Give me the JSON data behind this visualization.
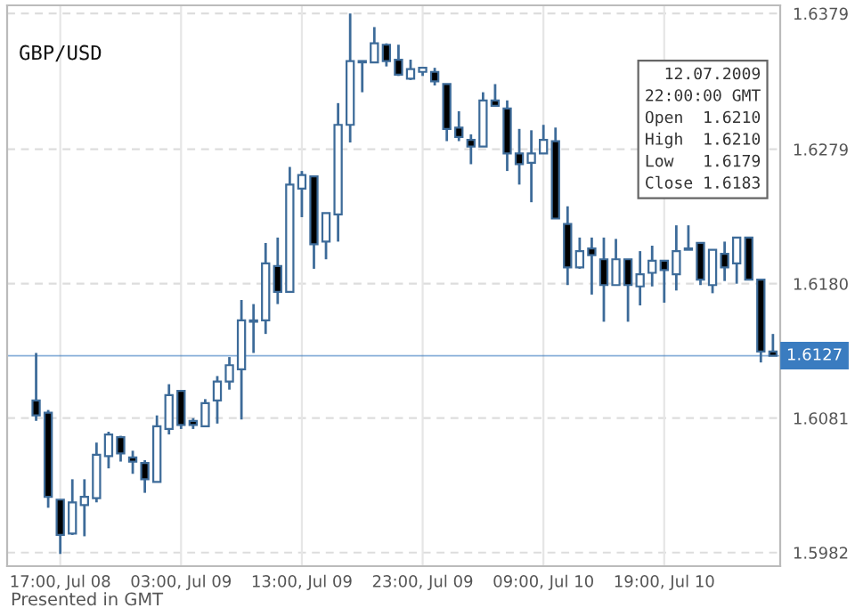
{
  "chart_data": {
    "type": "candlestick",
    "title": "GBP/USD",
    "categories": [
      null,
      null,
      "17:00, Jul 08",
      null,
      null,
      null,
      null,
      null,
      null,
      null,
      null,
      null,
      "03:00, Jul 09",
      null,
      null,
      null,
      null,
      null,
      null,
      null,
      null,
      null,
      "13:00, Jul 09",
      null,
      null,
      null,
      null,
      null,
      null,
      null,
      null,
      null,
      "23:00, Jul 09",
      null,
      null,
      null,
      null,
      null,
      null,
      null,
      null,
      null,
      "09:00, Jul 10",
      null,
      null,
      null,
      null,
      null,
      null,
      null,
      null,
      null,
      "19:00, Jul 10",
      null,
      null,
      null,
      null,
      null,
      null,
      null,
      null,
      null
    ],
    "ohlc": [
      [
        1.6094,
        1.6129,
        1.6079,
        1.6083
      ],
      [
        1.6085,
        1.6087,
        1.6015,
        1.6023
      ],
      [
        1.6021,
        1.6021,
        1.5981,
        1.5995
      ],
      [
        1.5996,
        1.6036,
        1.5995,
        1.6019
      ],
      [
        1.6017,
        1.6036,
        1.5994,
        1.6023
      ],
      [
        1.6022,
        1.6063,
        1.6019,
        1.6054
      ],
      [
        1.6053,
        1.6071,
        1.6044,
        1.6069
      ],
      [
        1.6067,
        1.6068,
        1.6049,
        1.6055
      ],
      [
        1.6052,
        1.6057,
        1.604,
        1.6049
      ],
      [
        1.6048,
        1.605,
        1.6026,
        1.6036
      ],
      [
        1.6034,
        1.6083,
        1.6034,
        1.6075
      ],
      [
        1.6073,
        1.6106,
        1.6069,
        1.6098
      ],
      [
        1.6101,
        1.6101,
        1.6073,
        1.6076
      ],
      [
        1.6079,
        1.6081,
        1.6073,
        1.6076
      ],
      [
        1.6075,
        1.6095,
        1.6075,
        1.6092
      ],
      [
        1.6094,
        1.6112,
        1.6077,
        1.6108
      ],
      [
        1.6108,
        1.6126,
        1.6102,
        1.612
      ],
      [
        1.6117,
        1.6168,
        1.608,
        1.6153
      ],
      [
        1.6152,
        1.6165,
        1.6129,
        1.6153
      ],
      [
        1.6153,
        1.621,
        1.6143,
        1.6195
      ],
      [
        1.6193,
        1.6214,
        1.6165,
        1.6174
      ],
      [
        1.6174,
        1.6266,
        1.6174,
        1.6253
      ],
      [
        1.625,
        1.6263,
        1.6229,
        1.626
      ],
      [
        1.6259,
        1.6259,
        1.6191,
        1.6209
      ],
      [
        1.6211,
        1.6232,
        1.6198,
        1.6232
      ],
      [
        1.6231,
        1.6313,
        1.6211,
        1.6297
      ],
      [
        1.6297,
        1.6379,
        1.6284,
        1.6344
      ],
      [
        1.6343,
        1.6344,
        1.6321,
        1.6344
      ],
      [
        1.6343,
        1.6369,
        1.6343,
        1.6357
      ],
      [
        1.6356,
        1.6357,
        1.634,
        1.6344
      ],
      [
        1.6345,
        1.6356,
        1.6333,
        1.6334
      ],
      [
        1.6331,
        1.6345,
        1.633,
        1.6338
      ],
      [
        1.6336,
        1.6339,
        1.6333,
        1.6339
      ],
      [
        1.6336,
        1.6339,
        1.6326,
        1.6329
      ],
      [
        1.6327,
        1.6327,
        1.6285,
        1.6294
      ],
      [
        1.6295,
        1.6307,
        1.6285,
        1.6288
      ],
      [
        1.6286,
        1.629,
        1.6268,
        1.6281
      ],
      [
        1.6281,
        1.6321,
        1.6281,
        1.6315
      ],
      [
        1.6315,
        1.6327,
        1.6311,
        1.6311
      ],
      [
        1.6309,
        1.6315,
        1.6263,
        1.6276
      ],
      [
        1.6276,
        1.6294,
        1.6253,
        1.6268
      ],
      [
        1.6269,
        1.6293,
        1.624,
        1.6276
      ],
      [
        1.6276,
        1.6297,
        1.6276,
        1.6286
      ],
      [
        1.6285,
        1.6295,
        1.6228,
        1.6228
      ],
      [
        1.6224,
        1.6237,
        1.6179,
        1.6192
      ],
      [
        1.6192,
        1.6214,
        1.6191,
        1.6204
      ],
      [
        1.6206,
        1.6214,
        1.6172,
        1.6201
      ],
      [
        1.6198,
        1.6214,
        1.6152,
        1.6179
      ],
      [
        1.6179,
        1.6213,
        1.6179,
        1.6198
      ],
      [
        1.6198,
        1.6198,
        1.6152,
        1.6179
      ],
      [
        1.6178,
        1.6204,
        1.6164,
        1.6187
      ],
      [
        1.6188,
        1.6208,
        1.6178,
        1.6197
      ],
      [
        1.6197,
        1.6197,
        1.6166,
        1.619
      ],
      [
        1.6187,
        1.6223,
        1.6175,
        1.6204
      ],
      [
        1.6205,
        1.6223,
        1.6205,
        1.6206
      ],
      [
        1.621,
        1.621,
        1.6179,
        1.6183
      ],
      [
        1.6179,
        1.6205,
        1.6173,
        1.6205
      ],
      [
        1.6202,
        1.6211,
        1.6182,
        1.6192
      ],
      [
        1.6195,
        1.6214,
        1.618,
        1.6214
      ],
      [
        1.6214,
        1.6214,
        1.6183,
        1.6183
      ],
      [
        1.6183,
        1.6183,
        1.6122,
        1.613
      ],
      [
        1.613,
        1.6143,
        1.6127,
        1.6127
      ]
    ],
    "color": "#3d6b99",
    "ylim": [
      1.5972,
      1.6385
    ],
    "yticks": [
      1.5982,
      1.6081,
      {
        "value": 1.618,
        "label": "1.6180"
      },
      1.6279,
      1.6379
    ],
    "grid": true,
    "ref_lines": [
      {
        "axis": "y",
        "value": 1.6127,
        "label": "1.6127",
        "color": "#3a7cc0"
      }
    ],
    "annotations": [
      "Presented in GMT",
      "12.07.2009\n22:00:00 GMT\nOpen  1.6210\nHigh  1.6210\nLow   1.6179\nClose 1.6183"
    ]
  }
}
